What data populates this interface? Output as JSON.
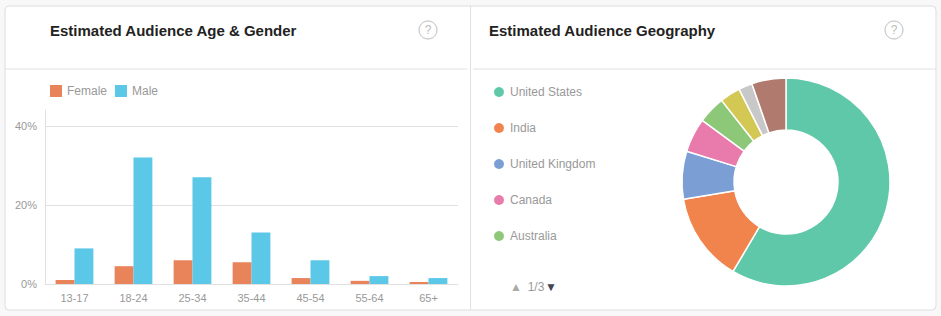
{
  "chart_data": [
    {
      "type": "bar",
      "title": "Estimated Audience Age & Gender",
      "categories": [
        "13-17",
        "18-24",
        "25-34",
        "35-44",
        "45-54",
        "55-64",
        "65+"
      ],
      "series": [
        {
          "name": "Female",
          "color": "#e8835a",
          "values": [
            1.0,
            4.5,
            6.0,
            5.5,
            1.5,
            0.8,
            0.5
          ]
        },
        {
          "name": "Male",
          "color": "#5bc8e8",
          "values": [
            9.0,
            32.0,
            27.0,
            13.0,
            6.0,
            2.0,
            1.5
          ]
        }
      ],
      "ylim": [
        0,
        44
      ],
      "yticks": [
        {
          "value": 0,
          "label": "0%"
        },
        {
          "value": 20,
          "label": "20%"
        },
        {
          "value": 40,
          "label": "40%"
        }
      ],
      "grid": true,
      "legend": "upper left",
      "annotations": [
        "?"
      ]
    },
    {
      "type": "pie",
      "title": "Estimated Audience Geography",
      "categories": [
        "United States",
        "India",
        "United Kingdom",
        "Canada",
        "Australia",
        null,
        null,
        null
      ],
      "values": [
        55,
        13,
        7,
        5,
        4,
        3,
        2,
        5
      ],
      "colors": [
        "#5ec8a8",
        "#f0844c",
        "#7b9fd4",
        "#e87aac",
        "#8dc878",
        "#d4c855",
        "#c8c8c8",
        "#b07a6e"
      ],
      "legend": "upper left",
      "annotations": [
        "?",
        "▲",
        "1/3",
        "▼"
      ]
    }
  ]
}
